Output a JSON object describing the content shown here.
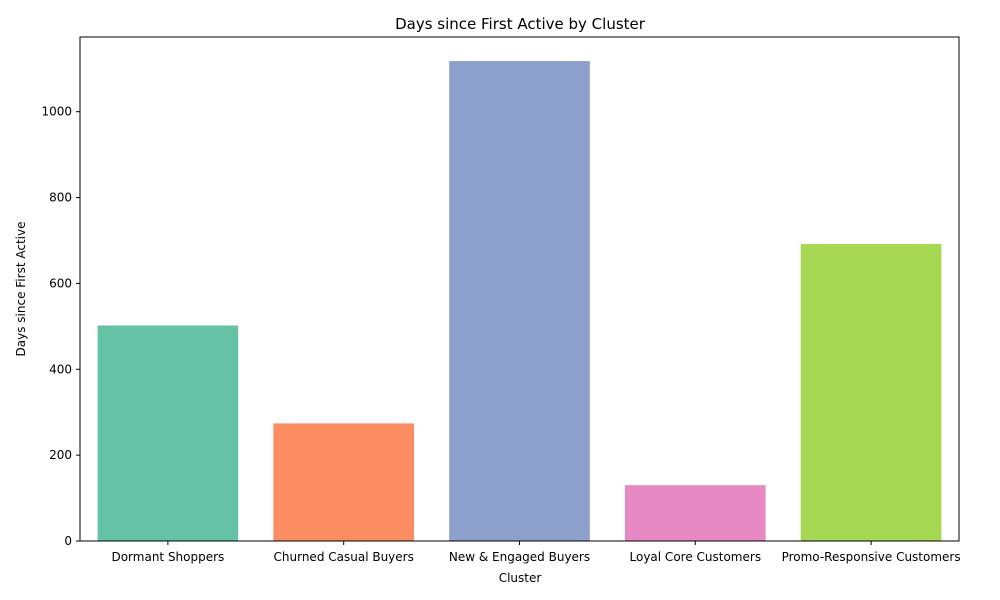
{
  "chart_data": {
    "type": "bar",
    "title": "Days since First Active by Cluster",
    "xlabel": "Cluster",
    "ylabel": "Days since First Active",
    "categories": [
      "Dormant Shoppers",
      "Churned Casual Buyers",
      "New & Engaged Buyers",
      "Loyal Core Customers",
      "Promo-Responsive Customers"
    ],
    "values": [
      502,
      274,
      1118,
      130,
      692
    ],
    "colors": [
      "#66c2a5",
      "#fc8d62",
      "#8da0cb",
      "#e78ac3",
      "#a6d854"
    ],
    "ylim": [
      0,
      1174
    ],
    "yticks": [
      0,
      200,
      400,
      600,
      800,
      1000
    ],
    "grid": false,
    "legend": "none"
  }
}
